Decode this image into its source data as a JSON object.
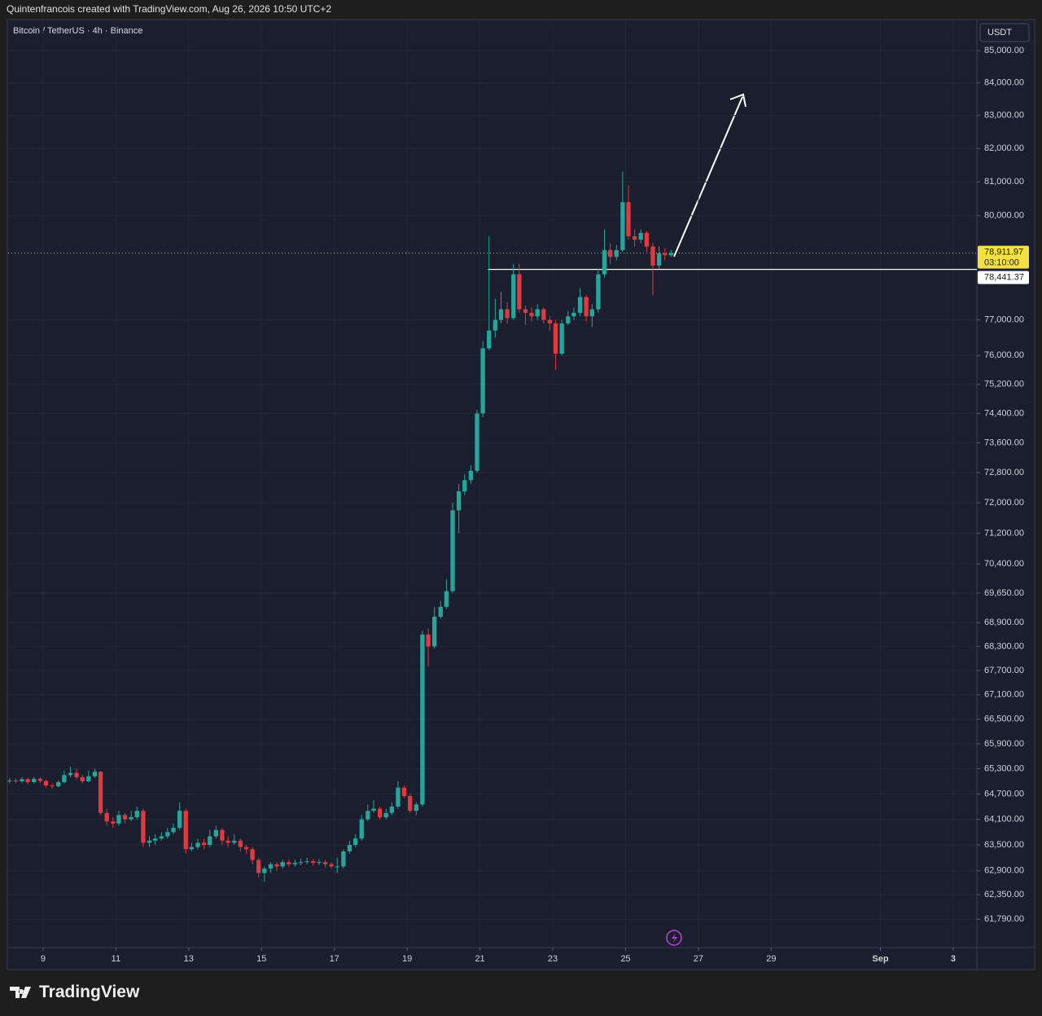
{
  "header": {
    "credit": "Quintenfrancois created with TradingView.com, Aug 26, 2026 10:50 UTC+2"
  },
  "footer": {
    "brand": "TradingView"
  },
  "chart_data": {
    "type": "candlestick",
    "title": "Bitcoin / TetherUS · 4h · Binance",
    "currency": "USDT",
    "log_scale": true,
    "grid": true,
    "up_color": "#26a69a",
    "down_color": "#e0393e",
    "xlim": [
      8.04,
      34.65
    ],
    "xticks": [
      9,
      11,
      13,
      15,
      17,
      19,
      21,
      23,
      25,
      27,
      29,
      {
        "value": 32,
        "label": "Sep"
      },
      {
        "value": 34,
        "label": "3"
      }
    ],
    "ylim": [
      61170,
      85950
    ],
    "yticks": [
      {
        "value": 85000,
        "label": "85,000.00"
      },
      {
        "value": 84000,
        "label": "84,000.00"
      },
      {
        "value": 83000,
        "label": "83,000.00"
      },
      {
        "value": 82000,
        "label": "82,000.00"
      },
      {
        "value": 81000,
        "label": "81,000.00"
      },
      {
        "value": 80000,
        "label": "80,000.00"
      },
      {
        "value": 77000,
        "label": "77,000.00"
      },
      {
        "value": 76000,
        "label": "76,000.00"
      },
      {
        "value": 75200,
        "label": "75,200.00"
      },
      {
        "value": 74400,
        "label": "74,400.00"
      },
      {
        "value": 73600,
        "label": "73,600.00"
      },
      {
        "value": 72800,
        "label": "72,800.00"
      },
      {
        "value": 72000,
        "label": "72,000.00"
      },
      {
        "value": 71200,
        "label": "71,200.00"
      },
      {
        "value": 70400,
        "label": "70,400.00"
      },
      {
        "value": 69650,
        "label": "69,650.00"
      },
      {
        "value": 68900,
        "label": "68,900.00"
      },
      {
        "value": 68300,
        "label": "68,300.00"
      },
      {
        "value": 67700,
        "label": "67,700.00"
      },
      {
        "value": 67100,
        "label": "67,100.00"
      },
      {
        "value": 66500,
        "label": "66,500.00"
      },
      {
        "value": 65900,
        "label": "65,900.00"
      },
      {
        "value": 65300,
        "label": "65,300.00"
      },
      {
        "value": 64700,
        "label": "64,700.00"
      },
      {
        "value": 64100,
        "label": "64,100.00"
      },
      {
        "value": 63500,
        "label": "63,500.00"
      },
      {
        "value": 62900,
        "label": "62,900.00"
      },
      {
        "value": 62350,
        "label": "62,350.00"
      },
      {
        "value": 61790,
        "label": "61,790.00"
      }
    ],
    "last_price": {
      "value": 78911.97,
      "label": "78,911.97",
      "countdown": "03:10:00",
      "color": "#f5e043"
    },
    "level": {
      "value": 78441.37,
      "label": "78,441.37",
      "x_start": 21.22
    },
    "x": [
      8.08,
      8.25,
      8.42,
      8.58,
      8.75,
      8.92,
      9.08,
      9.25,
      9.42,
      9.58,
      9.75,
      9.92,
      10.08,
      10.25,
      10.42,
      10.58,
      10.75,
      10.92,
      11.08,
      11.25,
      11.42,
      11.58,
      11.75,
      11.92,
      12.08,
      12.25,
      12.42,
      12.58,
      12.75,
      12.92,
      13.08,
      13.25,
      13.42,
      13.58,
      13.75,
      13.92,
      14.08,
      14.25,
      14.42,
      14.58,
      14.75,
      14.92,
      15.08,
      15.25,
      15.42,
      15.58,
      15.75,
      15.92,
      16.08,
      16.25,
      16.42,
      16.58,
      16.75,
      16.92,
      17.08,
      17.25,
      17.42,
      17.58,
      17.75,
      17.92,
      18.08,
      18.25,
      18.42,
      18.58,
      18.75,
      18.92,
      19.08,
      19.25,
      19.42,
      19.58,
      19.75,
      19.92,
      20.08,
      20.25,
      20.42,
      20.58,
      20.75,
      20.92,
      21.08,
      21.25,
      21.42,
      21.58,
      21.75,
      21.92,
      22.08,
      22.25,
      22.42,
      22.58,
      22.75,
      22.92,
      23.08,
      23.25,
      23.42,
      23.58,
      23.75,
      23.92,
      24.08,
      24.25,
      24.42,
      24.58,
      24.75,
      24.92,
      25.08,
      25.25,
      25.42,
      25.58,
      25.75,
      25.92,
      26.08,
      26.25
    ],
    "open": [
      65000,
      65020,
      65000,
      65050,
      64980,
      65060,
      65010,
      64900,
      64880,
      64980,
      65150,
      65200,
      65100,
      65000,
      65120,
      65230,
      64250,
      64050,
      64000,
      64200,
      64100,
      64150,
      64300,
      63550,
      63600,
      63650,
      63700,
      63800,
      63900,
      64300,
      63400,
      63450,
      63550,
      63500,
      63700,
      63850,
      63600,
      63550,
      63600,
      63450,
      63400,
      63150,
      62850,
      62950,
      63050,
      63000,
      63100,
      63050,
      63080,
      63100,
      63120,
      63080,
      63100,
      63050,
      63000,
      63000,
      63350,
      63500,
      63650,
      64100,
      64300,
      64350,
      64150,
      64250,
      64400,
      64850,
      64650,
      64300,
      64450,
      68600,
      68300,
      69050,
      69300,
      69700,
      71800,
      72300,
      72600,
      72850,
      74400,
      76200,
      76700,
      77000,
      77300,
      77050,
      78300,
      77300,
      77200,
      77100,
      77300,
      77000,
      76900,
      76050,
      76900,
      77100,
      77200,
      77650,
      77100,
      77300,
      78300,
      79000,
      78800,
      79000,
      80400,
      79400,
      79300,
      79500,
      79100,
      78550,
      78900,
      78850
    ],
    "high": [
      65080,
      65070,
      65100,
      65090,
      65110,
      65100,
      65040,
      64950,
      65020,
      65250,
      65350,
      65300,
      65150,
      65250,
      65300,
      65250,
      64350,
      64150,
      64300,
      64250,
      64300,
      64400,
      64350,
      63700,
      63750,
      63800,
      63900,
      64000,
      64500,
      64350,
      63550,
      63650,
      63650,
      63850,
      63950,
      63900,
      63700,
      63750,
      63650,
      63500,
      63450,
      63200,
      63000,
      63100,
      63100,
      63150,
      63150,
      63150,
      63180,
      63200,
      63180,
      63170,
      63150,
      63100,
      63200,
      63400,
      63600,
      63750,
      64200,
      64450,
      64550,
      64400,
      64350,
      64500,
      65000,
      64900,
      64700,
      64500,
      68700,
      68750,
      69300,
      69450,
      70000,
      72000,
      72500,
      72750,
      73000,
      74500,
      76400,
      79400,
      77600,
      77800,
      77500,
      78600,
      78600,
      77400,
      77350,
      77450,
      77350,
      77100,
      77000,
      77000,
      77250,
      77350,
      77900,
      77700,
      77450,
      78450,
      79600,
      79200,
      79150,
      81300,
      80900,
      79600,
      79600,
      79550,
      79200,
      79100,
      79050,
      79000
    ],
    "low": [
      64950,
      64960,
      64970,
      64930,
      64950,
      64960,
      64850,
      64820,
      64860,
      64950,
      65100,
      65050,
      64950,
      64980,
      65080,
      64200,
      63950,
      63900,
      63950,
      64000,
      64050,
      64100,
      63450,
      63450,
      63500,
      63600,
      63650,
      63750,
      63850,
      63300,
      63350,
      63400,
      63400,
      63450,
      63650,
      63500,
      63450,
      63500,
      63350,
      63300,
      63050,
      62750,
      62650,
      62850,
      62900,
      62950,
      63000,
      63000,
      63030,
      63050,
      63020,
      63030,
      62980,
      62950,
      62850,
      62950,
      63300,
      63450,
      63600,
      64050,
      64250,
      64100,
      64100,
      64200,
      64350,
      64600,
      64250,
      64200,
      64400,
      67800,
      68250,
      69000,
      69250,
      69650,
      71200,
      72200,
      72500,
      72800,
      74300,
      76150,
      76500,
      76900,
      76900,
      77000,
      77200,
      76850,
      76950,
      77000,
      76900,
      76700,
      75600,
      76000,
      76850,
      77000,
      77100,
      76950,
      76800,
      77200,
      78200,
      78600,
      78700,
      78950,
      79300,
      79100,
      79200,
      78950,
      77700,
      78450,
      78700,
      78800
    ],
    "close": [
      65020,
      65000,
      65050,
      64980,
      65060,
      65010,
      64900,
      64880,
      64980,
      65150,
      65200,
      65100,
      65000,
      65120,
      65230,
      64250,
      64050,
      64000,
      64200,
      64100,
      64150,
      64300,
      63550,
      63600,
      63650,
      63700,
      63800,
      63900,
      64300,
      63400,
      63450,
      63550,
      63500,
      63700,
      63850,
      63600,
      63550,
      63600,
      63450,
      63400,
      63150,
      62850,
      62950,
      63050,
      63000,
      63100,
      63050,
      63080,
      63100,
      63120,
      63080,
      63100,
      63050,
      63000,
      63000,
      63350,
      63500,
      63650,
      64100,
      64300,
      64350,
      64150,
      64250,
      64400,
      64850,
      64650,
      64300,
      64450,
      68600,
      68300,
      69050,
      69300,
      69700,
      71800,
      72300,
      72600,
      72850,
      74400,
      76200,
      76700,
      77000,
      77300,
      77050,
      78300,
      77300,
      77200,
      77100,
      77300,
      77000,
      76900,
      76050,
      76900,
      77100,
      77200,
      77650,
      77100,
      77300,
      78300,
      79000,
      78800,
      79000,
      80400,
      79400,
      79300,
      79500,
      79100,
      78550,
      78900,
      78850,
      78911.97
    ]
  }
}
